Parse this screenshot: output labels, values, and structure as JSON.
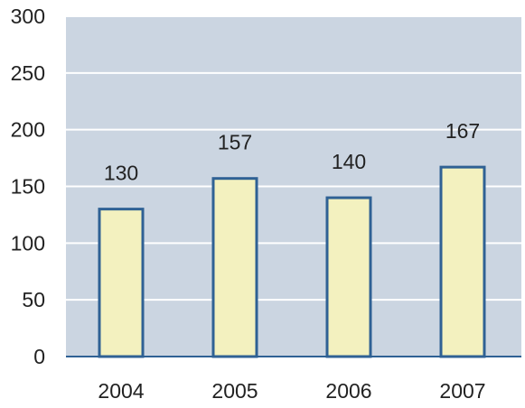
{
  "chart_data": {
    "type": "bar",
    "title": "",
    "xlabel": "",
    "ylabel": "",
    "categories": [
      "2004",
      "2005",
      "2006",
      "2007"
    ],
    "values": [
      130,
      157,
      140,
      167
    ],
    "data_labels": [
      "130",
      "157",
      "140",
      "167"
    ],
    "ylim": [
      0,
      300
    ],
    "yticks": [
      0,
      50,
      100,
      150,
      200,
      250,
      300
    ],
    "ytick_labels": [
      "0",
      "50",
      "100",
      "150",
      "200",
      "250",
      "300"
    ],
    "grid": true,
    "legend": "none",
    "colors": {
      "plot_background": "#cbd5e1",
      "grid": "#ffffff",
      "bar_fill": "#f3f1bf",
      "bar_stroke": "#2f6194",
      "axis": "#2f6194",
      "text": "#222222"
    }
  }
}
